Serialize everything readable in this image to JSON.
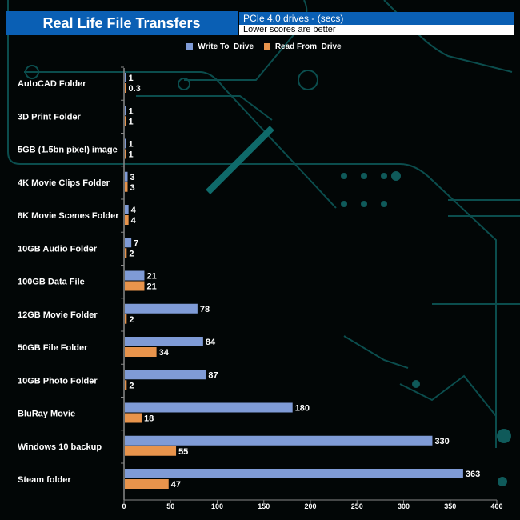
{
  "chart_data": {
    "type": "bar",
    "orientation": "horizontal",
    "title": "Real Life File Transfers",
    "subtitle": "PCIe 4.0 drives - (secs)",
    "note": "Lower scores are better",
    "categories": [
      "AutoCAD Folder",
      "3D Print Folder",
      "5GB (1.5bn pixel) image",
      "4K Movie Clips Folder",
      "8K Movie Scenes Folder",
      "10GB Audio Folder",
      "100GB Data File",
      "12GB Movie Folder",
      "50GB File Folder",
      "10GB Photo Folder",
      "BluRay Movie",
      "Windows 10 backup",
      "Steam folder"
    ],
    "series": [
      {
        "name": "Write To  Drive",
        "color": "#7f9bd6",
        "values": [
          1,
          1,
          1,
          3,
          4,
          7,
          21,
          78,
          84,
          87,
          180,
          330,
          363
        ]
      },
      {
        "name": "Read From  Drive",
        "color": "#e8944c",
        "values": [
          0.3,
          1,
          1,
          3,
          4,
          2,
          21,
          2,
          34,
          2,
          18,
          55,
          47
        ]
      }
    ],
    "xlim": [
      0,
      400
    ],
    "xticks": [
      "0",
      "50",
      "100",
      "150",
      "200",
      "250",
      "300",
      "350",
      "400"
    ],
    "legend": "top",
    "grid": false
  }
}
